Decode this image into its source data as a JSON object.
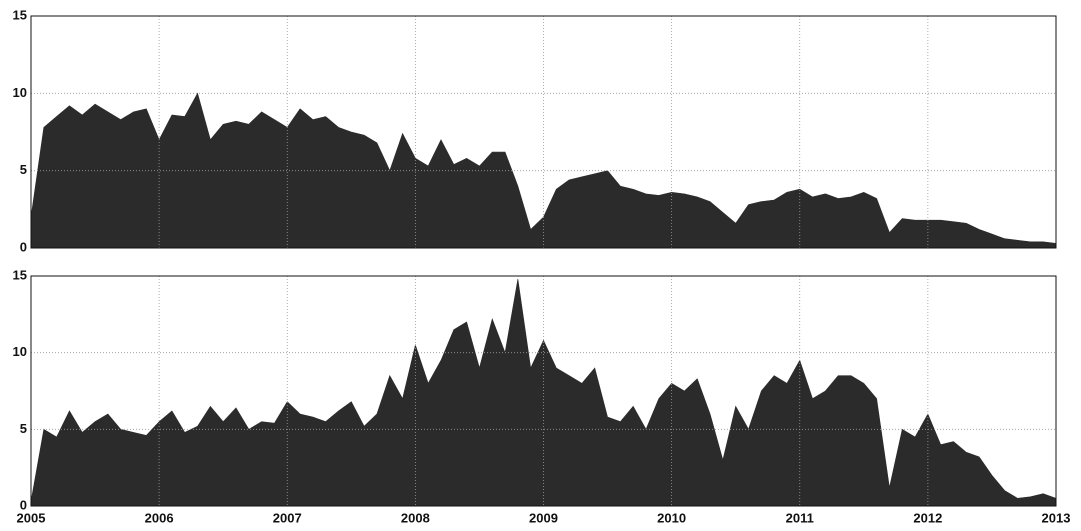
{
  "chart_data": [
    {
      "type": "area",
      "color": "#2b2b2b",
      "grid": true,
      "x": [
        2005.0,
        2005.1,
        2005.2,
        2005.3,
        2005.4,
        2005.5,
        2005.6,
        2005.7,
        2005.8,
        2005.9,
        2006.0,
        2006.1,
        2006.2,
        2006.3,
        2006.4,
        2006.5,
        2006.6,
        2006.7,
        2006.8,
        2006.9,
        2007.0,
        2007.1,
        2007.2,
        2007.3,
        2007.4,
        2007.5,
        2007.6,
        2007.7,
        2007.8,
        2007.9,
        2008.0,
        2008.1,
        2008.2,
        2008.3,
        2008.4,
        2008.5,
        2008.6,
        2008.7,
        2008.8,
        2008.9,
        2009.0,
        2009.1,
        2009.2,
        2009.3,
        2009.4,
        2009.5,
        2009.6,
        2009.7,
        2009.8,
        2009.9,
        2010.0,
        2010.1,
        2010.2,
        2010.3,
        2010.4,
        2010.5,
        2010.6,
        2010.7,
        2010.8,
        2010.9,
        2011.0,
        2011.1,
        2011.2,
        2011.3,
        2011.4,
        2011.5,
        2011.6,
        2011.7,
        2011.8,
        2011.9,
        2012.0,
        2012.1,
        2012.2,
        2012.3,
        2012.4,
        2012.5,
        2012.6,
        2012.7,
        2012.8,
        2012.9,
        2013.0
      ],
      "values": [
        2,
        7.8,
        8.5,
        9.2,
        8.6,
        9.3,
        8.8,
        8.3,
        8.8,
        9.0,
        7.0,
        8.6,
        8.5,
        10.0,
        7.0,
        8.0,
        8.2,
        8.0,
        8.8,
        8.3,
        7.8,
        9.0,
        8.3,
        8.5,
        7.8,
        7.5,
        7.3,
        6.8,
        5.0,
        7.4,
        5.8,
        5.3,
        7.0,
        5.4,
        5.8,
        5.3,
        6.2,
        6.2,
        4.0,
        1.2,
        2.0,
        3.8,
        4.4,
        4.6,
        4.8,
        5.0,
        4.0,
        3.8,
        3.5,
        3.4,
        3.6,
        3.5,
        3.3,
        3.0,
        2.3,
        1.6,
        2.8,
        3.0,
        3.1,
        3.6,
        3.8,
        3.3,
        3.5,
        3.2,
        3.3,
        3.6,
        3.2,
        1.0,
        1.9,
        1.8,
        1.8,
        1.8,
        1.7,
        1.6,
        1.2,
        0.9,
        0.6,
        0.5,
        0.4,
        0.4,
        0.3
      ],
      "xlim": [
        2005,
        2013
      ],
      "ylim": [
        0,
        15
      ],
      "yticks": [
        0,
        5,
        10,
        15
      ]
    },
    {
      "type": "area",
      "color": "#2b2b2b",
      "grid": true,
      "x": [
        2005.0,
        2005.1,
        2005.2,
        2005.3,
        2005.4,
        2005.5,
        2005.6,
        2005.7,
        2005.8,
        2005.9,
        2006.0,
        2006.1,
        2006.2,
        2006.3,
        2006.4,
        2006.5,
        2006.6,
        2006.7,
        2006.8,
        2006.9,
        2007.0,
        2007.1,
        2007.2,
        2007.3,
        2007.4,
        2007.5,
        2007.6,
        2007.7,
        2007.8,
        2007.9,
        2008.0,
        2008.1,
        2008.2,
        2008.3,
        2008.4,
        2008.5,
        2008.6,
        2008.7,
        2008.8,
        2008.9,
        2009.0,
        2009.1,
        2009.2,
        2009.3,
        2009.4,
        2009.5,
        2009.6,
        2009.7,
        2009.8,
        2009.9,
        2010.0,
        2010.1,
        2010.2,
        2010.3,
        2010.4,
        2010.5,
        2010.6,
        2010.7,
        2010.8,
        2010.9,
        2011.0,
        2011.1,
        2011.2,
        2011.3,
        2011.4,
        2011.5,
        2011.6,
        2011.7,
        2011.8,
        2011.9,
        2012.0,
        2012.1,
        2012.2,
        2012.3,
        2012.4,
        2012.5,
        2012.6,
        2012.7,
        2012.8,
        2012.9,
        2013.0
      ],
      "values": [
        0.3,
        5.0,
        4.5,
        6.2,
        4.8,
        5.5,
        6.0,
        5.0,
        4.8,
        4.6,
        5.5,
        6.2,
        4.8,
        5.2,
        6.5,
        5.5,
        6.4,
        5.0,
        5.5,
        5.4,
        6.8,
        6.0,
        5.8,
        5.5,
        6.2,
        6.8,
        5.2,
        6.0,
        8.5,
        7.0,
        10.5,
        8.0,
        9.5,
        11.5,
        12.0,
        9.0,
        12.2,
        10.0,
        14.8,
        9.0,
        10.8,
        9.0,
        8.5,
        8.0,
        9.0,
        5.8,
        5.5,
        6.5,
        5.0,
        7.0,
        8.0,
        7.5,
        8.3,
        6.0,
        3.0,
        6.5,
        5.0,
        7.5,
        8.5,
        8.0,
        9.5,
        7.0,
        7.5,
        8.5,
        8.5,
        8.0,
        7.0,
        1.2,
        5.0,
        4.5,
        6.0,
        4.0,
        4.2,
        3.5,
        3.2,
        2.0,
        1.0,
        0.5,
        0.6,
        0.8,
        0.5
      ],
      "xlim": [
        2005,
        2013
      ],
      "ylim": [
        0,
        15
      ],
      "yticks": [
        0,
        5,
        10,
        15
      ],
      "xticks": [
        2005,
        2006,
        2007,
        2008,
        2009,
        2010,
        2011,
        2012,
        2013
      ]
    }
  ]
}
